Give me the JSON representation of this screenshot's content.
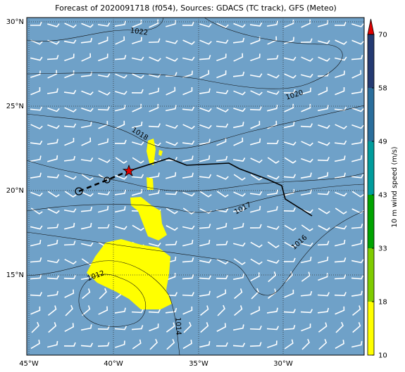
{
  "title": "Forecast of 2020091718 (f054), Sources: GDACS (TC track), GFS (Meteo)",
  "lat_labels": [
    "30°N",
    "25°N",
    "20°N",
    "15°N"
  ],
  "lon_labels": [
    "45°W",
    "40°W",
    "35°W",
    "30°W"
  ],
  "contour_labels": [
    "1022",
    "1020",
    "1018",
    "1017",
    "1016",
    "1012",
    "1014"
  ],
  "colorbar": {
    "label": "10 m wind speed (m/s)",
    "ticks": [
      10,
      18,
      33,
      43,
      49,
      58,
      70
    ],
    "colors": [
      "#ffff00",
      "#7fcc00",
      "#00a300",
      "#009c9c",
      "#2a6e9c",
      "#243a72"
    ],
    "extend_color": "#e00000"
  }
}
